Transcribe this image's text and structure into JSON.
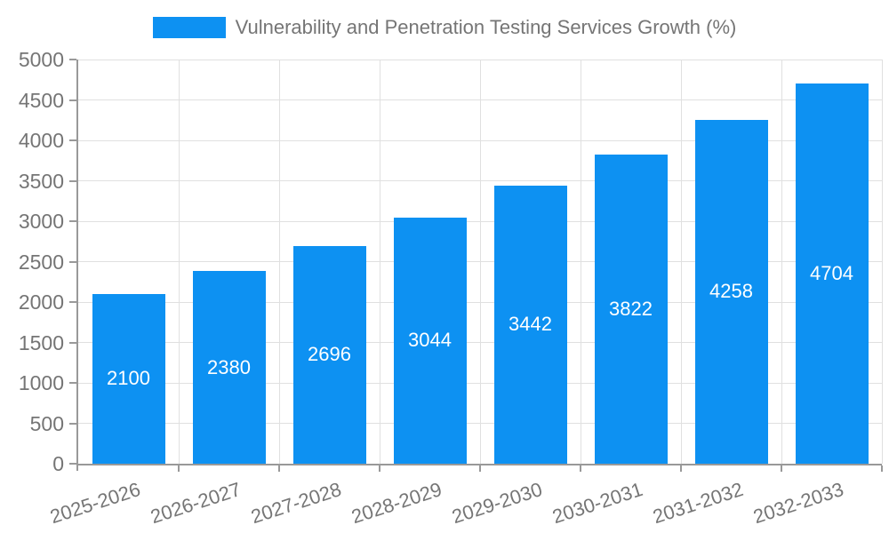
{
  "legend": {
    "items": [
      {
        "label": "Vulnerability and Penetration Testing Services Growth (%)",
        "color": "#0d91f2"
      }
    ]
  },
  "chart_data": {
    "type": "bar",
    "title": "Vulnerability and Penetration Testing Services Growth (%)",
    "categories": [
      "2025-2026",
      "2026-2027",
      "2027-2028",
      "2028-2029",
      "2029-2030",
      "2030-2031",
      "2031-2032",
      "2032-2033"
    ],
    "values": [
      2100,
      2380,
      2696,
      3044,
      3442,
      3822,
      4258,
      4704
    ],
    "value_labels": [
      "2100",
      "2380",
      "2696",
      "3044",
      "3442",
      "3822",
      "4258",
      "4704"
    ],
    "xlabel": "",
    "ylabel": "",
    "ylim": [
      0,
      5000
    ],
    "yticks": [
      0,
      500,
      1000,
      1500,
      2000,
      2500,
      3000,
      3500,
      4000,
      4500,
      5000
    ],
    "grid": true,
    "legend_position": "top",
    "colors": {
      "bar": "#0d91f2",
      "grid": "#e0e0e0",
      "axis": "#999999",
      "tick_text": "#757575",
      "value_text": "#ffffff",
      "background": "#ffffff"
    }
  }
}
